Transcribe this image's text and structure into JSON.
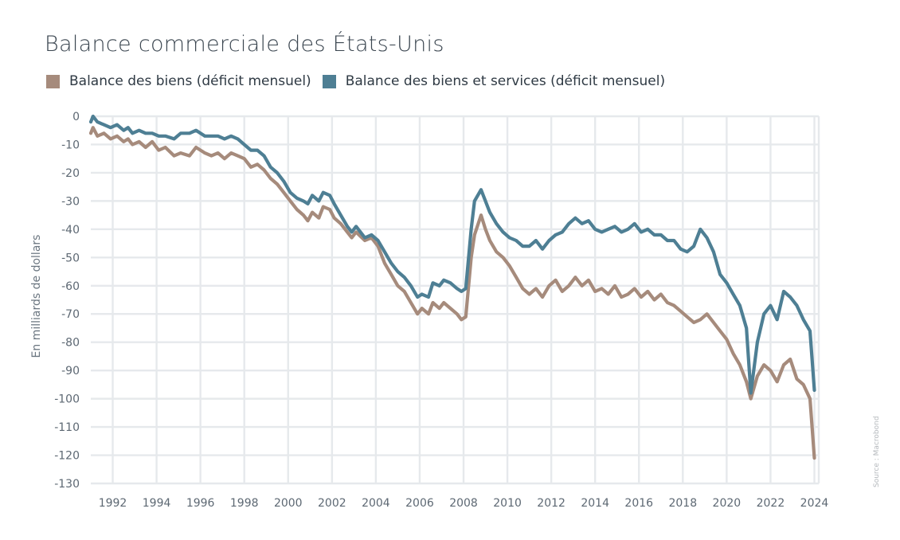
{
  "chart_data": {
    "type": "line",
    "title": "Balance commerciale des États-Unis",
    "ylabel": "En milliards de dollars",
    "xlabel": "",
    "ylim": [
      -130,
      0
    ],
    "xlim": [
      1991.0,
      2024.2
    ],
    "yticks": [
      0,
      -10,
      -20,
      -30,
      -40,
      -50,
      -60,
      -70,
      -80,
      -90,
      -100,
      -110,
      -120,
      -130
    ],
    "xticks": [
      "1992",
      "1994",
      "1996",
      "1998",
      "2000",
      "2002",
      "2004",
      "2006",
      "2008",
      "2010",
      "2012",
      "2014",
      "2016",
      "2018",
      "2020",
      "2022",
      "2024"
    ],
    "grid": true,
    "legend_position": "top-left",
    "series": [
      {
        "name": "Balance des biens (déficit mensuel)",
        "color": "#a68b7c",
        "points": [
          [
            1991.0,
            -6
          ],
          [
            1991.1,
            -4
          ],
          [
            1991.3,
            -7
          ],
          [
            1991.6,
            -6
          ],
          [
            1991.9,
            -8
          ],
          [
            1992.2,
            -7
          ],
          [
            1992.5,
            -9
          ],
          [
            1992.7,
            -8
          ],
          [
            1992.9,
            -10
          ],
          [
            1993.2,
            -9
          ],
          [
            1993.5,
            -11
          ],
          [
            1993.8,
            -9
          ],
          [
            1994.1,
            -12
          ],
          [
            1994.4,
            -11
          ],
          [
            1994.8,
            -14
          ],
          [
            1995.1,
            -13
          ],
          [
            1995.5,
            -14
          ],
          [
            1995.8,
            -11
          ],
          [
            1996.2,
            -13
          ],
          [
            1996.5,
            -14
          ],
          [
            1996.8,
            -13
          ],
          [
            1997.1,
            -15
          ],
          [
            1997.4,
            -13
          ],
          [
            1997.7,
            -14
          ],
          [
            1998.0,
            -15
          ],
          [
            1998.3,
            -18
          ],
          [
            1998.6,
            -17
          ],
          [
            1998.9,
            -19
          ],
          [
            1999.2,
            -22
          ],
          [
            1999.5,
            -24
          ],
          [
            1999.8,
            -27
          ],
          [
            2000.1,
            -30
          ],
          [
            2000.4,
            -33
          ],
          [
            2000.7,
            -35
          ],
          [
            2000.9,
            -37
          ],
          [
            2001.1,
            -34
          ],
          [
            2001.4,
            -36
          ],
          [
            2001.6,
            -32
          ],
          [
            2001.9,
            -33
          ],
          [
            2002.1,
            -36
          ],
          [
            2002.4,
            -38
          ],
          [
            2002.7,
            -41
          ],
          [
            2002.9,
            -43
          ],
          [
            2003.1,
            -41
          ],
          [
            2003.5,
            -44
          ],
          [
            2003.8,
            -43
          ],
          [
            2004.1,
            -46
          ],
          [
            2004.4,
            -52
          ],
          [
            2004.7,
            -56
          ],
          [
            2005.0,
            -60
          ],
          [
            2005.3,
            -62
          ],
          [
            2005.6,
            -66
          ],
          [
            2005.9,
            -70
          ],
          [
            2006.1,
            -68
          ],
          [
            2006.4,
            -70
          ],
          [
            2006.6,
            -66
          ],
          [
            2006.9,
            -68
          ],
          [
            2007.1,
            -66
          ],
          [
            2007.4,
            -68
          ],
          [
            2007.7,
            -70
          ],
          [
            2007.9,
            -72
          ],
          [
            2008.1,
            -71
          ],
          [
            2008.35,
            -50
          ],
          [
            2008.5,
            -42
          ],
          [
            2008.8,
            -35
          ],
          [
            2009.0,
            -40
          ],
          [
            2009.2,
            -44
          ],
          [
            2009.5,
            -48
          ],
          [
            2009.8,
            -50
          ],
          [
            2010.1,
            -53
          ],
          [
            2010.4,
            -57
          ],
          [
            2010.7,
            -61
          ],
          [
            2011.0,
            -63
          ],
          [
            2011.3,
            -61
          ],
          [
            2011.6,
            -64
          ],
          [
            2011.9,
            -60
          ],
          [
            2012.2,
            -58
          ],
          [
            2012.5,
            -62
          ],
          [
            2012.8,
            -60
          ],
          [
            2013.1,
            -57
          ],
          [
            2013.4,
            -60
          ],
          [
            2013.7,
            -58
          ],
          [
            2014.0,
            -62
          ],
          [
            2014.3,
            -61
          ],
          [
            2014.6,
            -63
          ],
          [
            2014.9,
            -60
          ],
          [
            2015.2,
            -64
          ],
          [
            2015.5,
            -63
          ],
          [
            2015.8,
            -61
          ],
          [
            2016.1,
            -64
          ],
          [
            2016.4,
            -62
          ],
          [
            2016.7,
            -65
          ],
          [
            2017.0,
            -63
          ],
          [
            2017.3,
            -66
          ],
          [
            2017.6,
            -67
          ],
          [
            2017.9,
            -69
          ],
          [
            2018.2,
            -71
          ],
          [
            2018.5,
            -73
          ],
          [
            2018.8,
            -72
          ],
          [
            2019.1,
            -70
          ],
          [
            2019.4,
            -73
          ],
          [
            2019.7,
            -76
          ],
          [
            2020.0,
            -79
          ],
          [
            2020.3,
            -84
          ],
          [
            2020.6,
            -88
          ],
          [
            2020.9,
            -94
          ],
          [
            2021.1,
            -100
          ],
          [
            2021.4,
            -92
          ],
          [
            2021.7,
            -88
          ],
          [
            2022.0,
            -90
          ],
          [
            2022.3,
            -94
          ],
          [
            2022.6,
            -88
          ],
          [
            2022.9,
            -86
          ],
          [
            2023.2,
            -93
          ],
          [
            2023.5,
            -95
          ],
          [
            2023.8,
            -100
          ],
          [
            2024.0,
            -121
          ]
        ]
      },
      {
        "name": "Balance des biens et services (déficit mensuel)",
        "color": "#4e7f94",
        "points": [
          [
            1991.0,
            -2
          ],
          [
            1991.1,
            0
          ],
          [
            1991.3,
            -2
          ],
          [
            1991.6,
            -3
          ],
          [
            1991.9,
            -4
          ],
          [
            1992.2,
            -3
          ],
          [
            1992.5,
            -5
          ],
          [
            1992.7,
            -4
          ],
          [
            1992.9,
            -6
          ],
          [
            1993.2,
            -5
          ],
          [
            1993.5,
            -6
          ],
          [
            1993.8,
            -6
          ],
          [
            1994.1,
            -7
          ],
          [
            1994.4,
            -7
          ],
          [
            1994.8,
            -8
          ],
          [
            1995.1,
            -6
          ],
          [
            1995.5,
            -6
          ],
          [
            1995.8,
            -5
          ],
          [
            1996.2,
            -7
          ],
          [
            1996.5,
            -7
          ],
          [
            1996.8,
            -7
          ],
          [
            1997.1,
            -8
          ],
          [
            1997.4,
            -7
          ],
          [
            1997.7,
            -8
          ],
          [
            1998.0,
            -10
          ],
          [
            1998.3,
            -12
          ],
          [
            1998.6,
            -12
          ],
          [
            1998.9,
            -14
          ],
          [
            1999.2,
            -18
          ],
          [
            1999.5,
            -20
          ],
          [
            1999.8,
            -23
          ],
          [
            2000.1,
            -27
          ],
          [
            2000.4,
            -29
          ],
          [
            2000.7,
            -30
          ],
          [
            2000.9,
            -31
          ],
          [
            2001.1,
            -28
          ],
          [
            2001.4,
            -30
          ],
          [
            2001.6,
            -27
          ],
          [
            2001.9,
            -28
          ],
          [
            2002.1,
            -31
          ],
          [
            2002.4,
            -35
          ],
          [
            2002.7,
            -39
          ],
          [
            2002.9,
            -41
          ],
          [
            2003.1,
            -39
          ],
          [
            2003.5,
            -43
          ],
          [
            2003.8,
            -42
          ],
          [
            2004.1,
            -44
          ],
          [
            2004.4,
            -48
          ],
          [
            2004.7,
            -52
          ],
          [
            2005.0,
            -55
          ],
          [
            2005.3,
            -57
          ],
          [
            2005.6,
            -60
          ],
          [
            2005.9,
            -64
          ],
          [
            2006.1,
            -63
          ],
          [
            2006.4,
            -64
          ],
          [
            2006.6,
            -59
          ],
          [
            2006.9,
            -60
          ],
          [
            2007.1,
            -58
          ],
          [
            2007.4,
            -59
          ],
          [
            2007.7,
            -61
          ],
          [
            2007.9,
            -62
          ],
          [
            2008.1,
            -61
          ],
          [
            2008.35,
            -40
          ],
          [
            2008.5,
            -30
          ],
          [
            2008.8,
            -26
          ],
          [
            2009.0,
            -30
          ],
          [
            2009.2,
            -34
          ],
          [
            2009.5,
            -38
          ],
          [
            2009.8,
            -41
          ],
          [
            2010.1,
            -43
          ],
          [
            2010.4,
            -44
          ],
          [
            2010.7,
            -46
          ],
          [
            2011.0,
            -46
          ],
          [
            2011.3,
            -44
          ],
          [
            2011.6,
            -47
          ],
          [
            2011.9,
            -44
          ],
          [
            2012.2,
            -42
          ],
          [
            2012.5,
            -41
          ],
          [
            2012.8,
            -38
          ],
          [
            2013.1,
            -36
          ],
          [
            2013.4,
            -38
          ],
          [
            2013.7,
            -37
          ],
          [
            2014.0,
            -40
          ],
          [
            2014.3,
            -41
          ],
          [
            2014.6,
            -40
          ],
          [
            2014.9,
            -39
          ],
          [
            2015.2,
            -41
          ],
          [
            2015.5,
            -40
          ],
          [
            2015.8,
            -38
          ],
          [
            2016.1,
            -41
          ],
          [
            2016.4,
            -40
          ],
          [
            2016.7,
            -42
          ],
          [
            2017.0,
            -42
          ],
          [
            2017.3,
            -44
          ],
          [
            2017.6,
            -44
          ],
          [
            2017.9,
            -47
          ],
          [
            2018.2,
            -48
          ],
          [
            2018.5,
            -46
          ],
          [
            2018.8,
            -40
          ],
          [
            2019.1,
            -43
          ],
          [
            2019.4,
            -48
          ],
          [
            2019.7,
            -56
          ],
          [
            2020.0,
            -59
          ],
          [
            2020.3,
            -63
          ],
          [
            2020.6,
            -67
          ],
          [
            2020.9,
            -75
          ],
          [
            2021.1,
            -98
          ],
          [
            2021.4,
            -80
          ],
          [
            2021.7,
            -70
          ],
          [
            2022.0,
            -67
          ],
          [
            2022.3,
            -72
          ],
          [
            2022.6,
            -62
          ],
          [
            2022.9,
            -64
          ],
          [
            2023.2,
            -67
          ],
          [
            2023.5,
            -72
          ],
          [
            2023.8,
            -76
          ],
          [
            2024.0,
            -97
          ]
        ]
      }
    ]
  },
  "source_label": "Source : Macrobond"
}
